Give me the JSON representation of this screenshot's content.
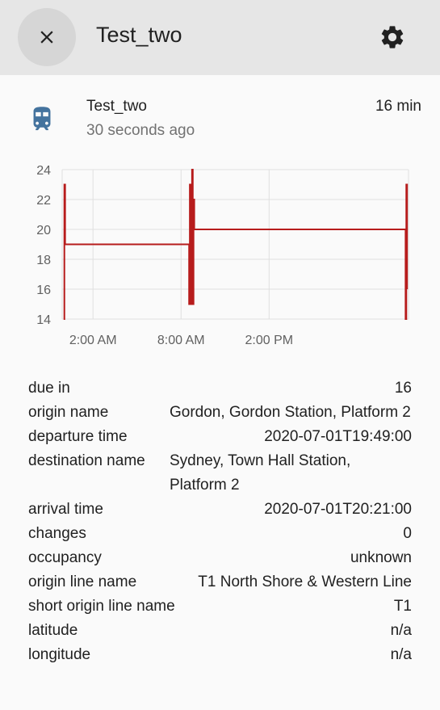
{
  "header": {
    "title": "Test_two",
    "close_icon": "close-icon",
    "settings_icon": "gear-icon"
  },
  "entity": {
    "icon": "train-icon",
    "icon_color": "#44739e",
    "name": "Test_two",
    "updated": "30 seconds ago",
    "state": "16 min"
  },
  "chart_data": {
    "type": "line",
    "line_color": "#b71c1c",
    "grid": true,
    "ylim": [
      14,
      24
    ],
    "yticks": [
      "14",
      "16",
      "18",
      "20",
      "22",
      "24"
    ],
    "xticks": [
      "2:00 AM",
      "8:00 AM",
      "2:00 PM"
    ],
    "series": [
      {
        "values": [
          {
            "x": 0.0,
            "y": 14
          },
          {
            "x": 0.05,
            "y": 23
          },
          {
            "x": 0.1,
            "y": 19
          },
          {
            "x": 5.5,
            "y": 19
          },
          {
            "x": 8.5,
            "y": 19
          },
          {
            "x": 8.55,
            "y": 15
          },
          {
            "x": 8.6,
            "y": 23
          },
          {
            "x": 8.65,
            "y": 15
          },
          {
            "x": 8.75,
            "y": 24
          },
          {
            "x": 8.8,
            "y": 15
          },
          {
            "x": 8.85,
            "y": 22
          },
          {
            "x": 8.9,
            "y": 20
          },
          {
            "x": 14.0,
            "y": 20
          },
          {
            "x": 23.25,
            "y": 20
          },
          {
            "x": 23.3,
            "y": 14
          },
          {
            "x": 23.35,
            "y": 23
          },
          {
            "x": 23.4,
            "y": 16
          }
        ]
      }
    ]
  },
  "attributes": [
    {
      "key": "due in",
      "value": "16"
    },
    {
      "key": "origin name",
      "value": "Gordon, Gordon Station, Platform 2",
      "wrap": true
    },
    {
      "key": "departure time",
      "value": "2020-07-01T19:49:00"
    },
    {
      "key": "destination name",
      "value": "Sydney, Town Hall Station, Platform 2",
      "wrap": true
    },
    {
      "key": "arrival time",
      "value": "2020-07-01T20:21:00"
    },
    {
      "key": "changes",
      "value": "0"
    },
    {
      "key": "occupancy",
      "value": "unknown"
    },
    {
      "key": "origin line name",
      "value": "T1 North Shore & Western Line"
    },
    {
      "key": "short origin line name",
      "value": "T1"
    },
    {
      "key": "latitude",
      "value": "n/a"
    },
    {
      "key": "longitude",
      "value": "n/a"
    }
  ]
}
